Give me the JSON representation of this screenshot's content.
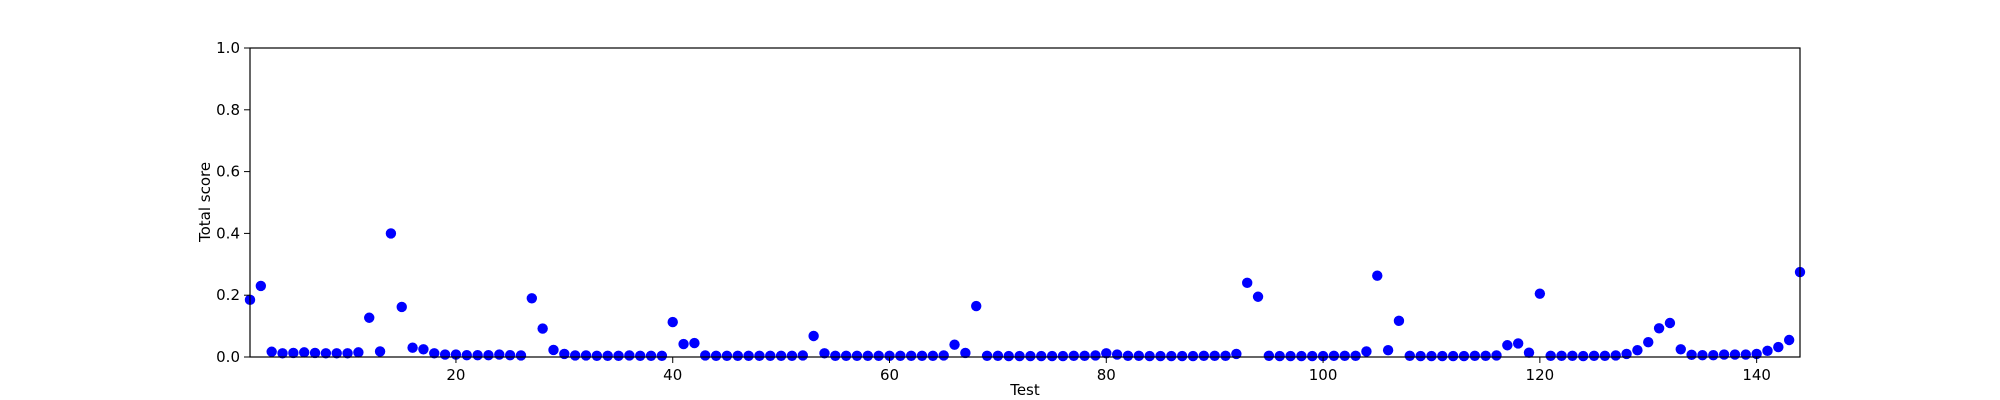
{
  "chart_data": {
    "type": "scatter",
    "title": "",
    "xlabel": "Test",
    "ylabel": "Total score",
    "xlim": [
      1,
      144
    ],
    "ylim": [
      0.0,
      1.0
    ],
    "xticks": [
      20,
      40,
      60,
      80,
      100,
      120,
      140
    ],
    "xtick_labels": [
      "20",
      "40",
      "60",
      "80",
      "100",
      "120",
      "140"
    ],
    "yticks": [
      0.0,
      0.2,
      0.4,
      0.6,
      0.8,
      1.0
    ],
    "ytick_labels": [
      "0.0",
      "0.2",
      "0.4",
      "0.6",
      "0.8",
      "1.0"
    ],
    "grid": false,
    "legend": "none",
    "marker_color": "#0000ff",
    "series": [
      {
        "x": [
          1,
          2,
          3,
          4,
          5,
          6,
          7,
          8,
          9,
          10,
          11,
          12,
          13,
          14,
          15,
          16,
          17,
          18,
          19,
          20,
          21,
          22,
          23,
          24,
          25,
          26,
          27,
          28,
          29,
          30,
          31,
          32,
          33,
          34,
          35,
          36,
          37,
          38,
          39,
          40,
          41,
          42,
          43,
          44,
          45,
          46,
          47,
          48,
          49,
          50,
          51,
          52,
          53,
          54,
          55,
          56,
          57,
          58,
          59,
          60,
          61,
          62,
          63,
          64,
          65,
          66,
          67,
          68,
          69,
          70,
          71,
          72,
          73,
          74,
          75,
          76,
          77,
          78,
          79,
          80,
          81,
          82,
          83,
          84,
          85,
          86,
          87,
          88,
          89,
          90,
          91,
          92,
          93,
          94,
          95,
          96,
          97,
          98,
          99,
          100,
          101,
          102,
          103,
          104,
          105,
          106,
          107,
          108,
          109,
          110,
          111,
          112,
          113,
          114,
          115,
          116,
          117,
          118,
          119,
          120,
          121,
          122,
          123,
          124,
          125,
          126,
          127,
          128,
          129,
          130,
          131,
          132,
          133,
          134,
          135,
          136,
          137,
          138,
          139,
          140,
          141,
          142,
          143,
          144
        ],
        "y": [
          0.185,
          0.23,
          0.017,
          0.012,
          0.013,
          0.015,
          0.013,
          0.012,
          0.012,
          0.012,
          0.015,
          0.127,
          0.018,
          0.4,
          0.162,
          0.03,
          0.025,
          0.012,
          0.008,
          0.008,
          0.006,
          0.006,
          0.006,
          0.008,
          0.006,
          0.005,
          0.19,
          0.092,
          0.023,
          0.01,
          0.005,
          0.005,
          0.004,
          0.004,
          0.004,
          0.005,
          0.004,
          0.004,
          0.004,
          0.113,
          0.042,
          0.045,
          0.005,
          0.004,
          0.004,
          0.004,
          0.004,
          0.004,
          0.004,
          0.004,
          0.004,
          0.005,
          0.068,
          0.012,
          0.004,
          0.004,
          0.004,
          0.004,
          0.004,
          0.004,
          0.004,
          0.004,
          0.004,
          0.004,
          0.005,
          0.04,
          0.013,
          0.165,
          0.004,
          0.004,
          0.003,
          0.003,
          0.003,
          0.003,
          0.003,
          0.003,
          0.004,
          0.004,
          0.005,
          0.012,
          0.008,
          0.004,
          0.004,
          0.003,
          0.003,
          0.003,
          0.003,
          0.003,
          0.004,
          0.004,
          0.004,
          0.01,
          0.24,
          0.195,
          0.004,
          0.003,
          0.003,
          0.003,
          0.003,
          0.003,
          0.004,
          0.004,
          0.004,
          0.018,
          0.263,
          0.022,
          0.117,
          0.004,
          0.003,
          0.003,
          0.003,
          0.003,
          0.003,
          0.004,
          0.004,
          0.005,
          0.038,
          0.044,
          0.014,
          0.205,
          0.004,
          0.004,
          0.004,
          0.003,
          0.004,
          0.004,
          0.005,
          0.01,
          0.022,
          0.048,
          0.093,
          0.11,
          0.025,
          0.007,
          0.006,
          0.006,
          0.008,
          0.008,
          0.008,
          0.01,
          0.02,
          0.032,
          0.055,
          0.275
        ]
      }
    ]
  }
}
